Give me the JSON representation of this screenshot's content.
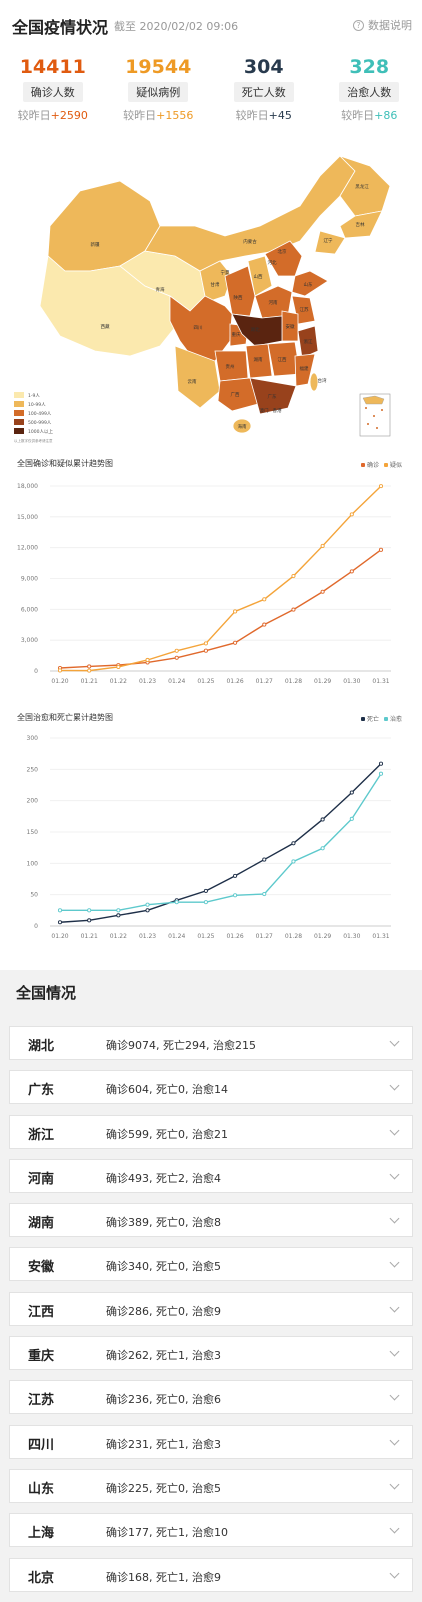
{
  "header": {
    "title": "全国疫情状况",
    "subtitle": "截至 2020/02/02 09:06",
    "explain_label": "数据说明"
  },
  "stats": [
    {
      "value": "14411",
      "label": "确诊人数",
      "delta_prefix": "较昨日",
      "delta": "+2590",
      "color": "#e05b10"
    },
    {
      "value": "19544",
      "label": "疑似病例",
      "delta_prefix": "较昨日",
      "delta": "+1556",
      "color": "#ee9a25"
    },
    {
      "value": "304",
      "label": "死亡人数",
      "delta_prefix": "较昨日",
      "delta": "+45",
      "color": "#283a4d"
    },
    {
      "value": "328",
      "label": "治愈人数",
      "delta_prefix": "较昨日",
      "delta": "+86",
      "color": "#3fbfb8"
    }
  ],
  "map": {
    "legend": [
      "1-9人",
      "10-99人",
      "100-499人",
      "500-999人",
      "1000人以上"
    ],
    "legend_colors": [
      "#fbe9ae",
      "#eeb85a",
      "#d36c29",
      "#98421c",
      "#5a2410"
    ],
    "footnote": "以上数字仅供参考请注意",
    "labels": [
      {
        "name": "黑龙江",
        "t": "nehei"
      },
      {
        "name": "吉林",
        "t": "jl"
      },
      {
        "name": "辽宁",
        "t": "ln"
      },
      {
        "name": "内蒙古",
        "t": "nmg"
      },
      {
        "name": "新疆",
        "t": "xj"
      },
      {
        "name": "西藏",
        "t": "xz"
      },
      {
        "name": "青海",
        "t": "qh"
      },
      {
        "name": "甘肃",
        "t": "gs"
      },
      {
        "name": "宁夏",
        "t": "nx"
      },
      {
        "name": "陕西",
        "t": "sx"
      },
      {
        "name": "山西",
        "t": "shx"
      },
      {
        "name": "河北",
        "t": "hb"
      },
      {
        "name": "北京",
        "t": "bj"
      },
      {
        "name": "山东",
        "t": "sd"
      },
      {
        "name": "河南",
        "t": "hn"
      },
      {
        "name": "江苏",
        "t": "js"
      },
      {
        "name": "安徽",
        "t": "ah"
      },
      {
        "name": "湖北",
        "t": "hub"
      },
      {
        "name": "四川",
        "t": "sc"
      },
      {
        "name": "重庆",
        "t": "cq"
      },
      {
        "name": "浙江",
        "t": "zj"
      },
      {
        "name": "湖南",
        "t": "hun"
      },
      {
        "name": "江西",
        "t": "jx"
      },
      {
        "name": "贵州",
        "t": "gz"
      },
      {
        "name": "云南",
        "t": "yn"
      },
      {
        "name": "广西",
        "t": "gx"
      },
      {
        "name": "广东",
        "t": "gd"
      },
      {
        "name": "福建",
        "t": "fj"
      },
      {
        "name": "台湾",
        "t": "tw"
      },
      {
        "name": "海南",
        "t": "han"
      },
      {
        "name": "香港",
        "t": "hk"
      },
      {
        "name": "澳门",
        "t": "mo"
      }
    ]
  },
  "chart_data": [
    {
      "type": "line",
      "title": "全国确诊和疑似累计趋势图",
      "categories": [
        "01.20",
        "01.21",
        "01.22",
        "01.23",
        "01.24",
        "01.25",
        "01.26",
        "01.27",
        "01.28",
        "01.29",
        "01.30",
        "01.31"
      ],
      "ylim": [
        0,
        18000
      ],
      "yticks": [
        "0",
        "3,000",
        "6,000",
        "9,000",
        "12,000",
        "15,000",
        "18,000"
      ],
      "series": [
        {
          "name": "确诊",
          "color": "#e0692c",
          "values": [
            291,
            440,
            571,
            830,
            1287,
            1975,
            2744,
            4515,
            5974,
            7711,
            9692,
            11791
          ]
        },
        {
          "name": "疑似",
          "color": "#f4a43a",
          "values": [
            54,
            37,
            393,
            1072,
            1965,
            2684,
            5794,
            6973,
            9239,
            12167,
            15238,
            17988
          ]
        }
      ]
    },
    {
      "type": "line",
      "title": "全国治愈和死亡累计趋势图",
      "categories": [
        "01.20",
        "01.21",
        "01.22",
        "01.23",
        "01.24",
        "01.25",
        "01.26",
        "01.27",
        "01.28",
        "01.29",
        "01.30",
        "01.31"
      ],
      "ylim": [
        0,
        300
      ],
      "yticks": [
        "0",
        "50",
        "100",
        "150",
        "200",
        "250",
        "300"
      ],
      "series": [
        {
          "name": "死亡",
          "color": "#1e2f48",
          "values": [
            6,
            9,
            17,
            25,
            41,
            56,
            80,
            106,
            132,
            170,
            213,
            259
          ]
        },
        {
          "name": "治愈",
          "color": "#5dc9cc",
          "values": [
            25,
            25,
            25,
            34,
            38,
            38,
            49,
            51,
            103,
            124,
            171,
            243
          ]
        }
      ]
    }
  ],
  "national": {
    "title": "全国情况",
    "provinces": [
      {
        "name": "湖北",
        "info": "确诊9074, 死亡294, 治愈215"
      },
      {
        "name": "广东",
        "info": "确诊604, 死亡0, 治愈14"
      },
      {
        "name": "浙江",
        "info": "确诊599, 死亡0, 治愈21"
      },
      {
        "name": "河南",
        "info": "确诊493, 死亡2, 治愈4"
      },
      {
        "name": "湖南",
        "info": "确诊389, 死亡0, 治愈8"
      },
      {
        "name": "安徽",
        "info": "确诊340, 死亡0, 治愈5"
      },
      {
        "name": "江西",
        "info": "确诊286, 死亡0, 治愈9"
      },
      {
        "name": "重庆",
        "info": "确诊262, 死亡1, 治愈3"
      },
      {
        "name": "江苏",
        "info": "确诊236, 死亡0, 治愈6"
      },
      {
        "name": "四川",
        "info": "确诊231, 死亡1, 治愈3"
      },
      {
        "name": "山东",
        "info": "确诊225, 死亡0, 治愈5"
      },
      {
        "name": "上海",
        "info": "确诊177, 死亡1, 治愈10"
      },
      {
        "name": "北京",
        "info": "确诊168, 死亡1, 治愈9"
      }
    ]
  }
}
